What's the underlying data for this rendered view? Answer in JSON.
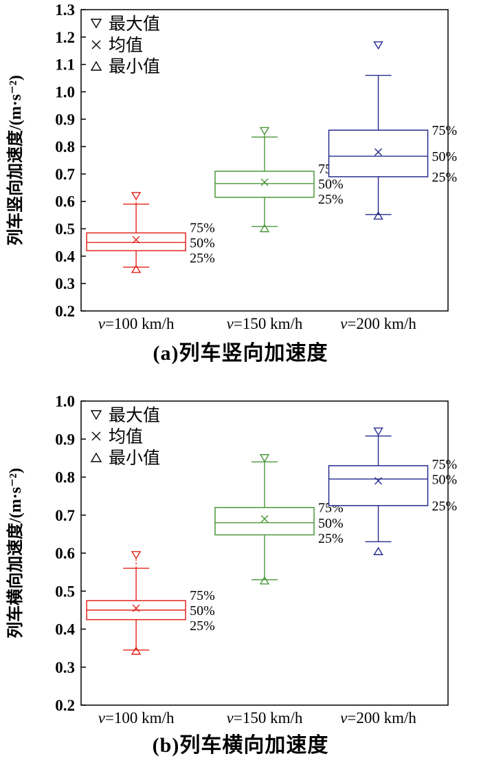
{
  "chart_data": [
    {
      "type": "box",
      "title": "(a)列车竖向加速度",
      "ylabel": "列车竖向加速度/(m·s⁻²)",
      "ylim": [
        0.2,
        1.3
      ],
      "ytick_step": 0.1,
      "grid": false,
      "legend_position": "top-left",
      "legend": [
        {
          "marker": "triangle-down-open",
          "label": "最大值"
        },
        {
          "marker": "cross",
          "label": "均值"
        },
        {
          "marker": "triangle-up-open",
          "label": "最小值"
        }
      ],
      "quartile_labels": [
        "75%",
        "50%",
        "25%"
      ],
      "categories": [
        "v=100 km/h",
        "v=150 km/h",
        "v=200 km/h"
      ],
      "series": [
        {
          "category": "v=100 km/h",
          "color": "#e2231a",
          "max": 0.62,
          "whisker_high": 0.59,
          "q3": 0.485,
          "mean": 0.46,
          "median": 0.45,
          "q1": 0.42,
          "whisker_low": 0.36,
          "min": 0.353
        },
        {
          "category": "v=150 km/h",
          "color": "#4a9738",
          "max": 0.857,
          "whisker_high": 0.835,
          "q3": 0.71,
          "mean": 0.67,
          "median": 0.665,
          "q1": 0.615,
          "whisker_low": 0.508,
          "min": 0.502
        },
        {
          "category": "v=200 km/h",
          "color": "#252a8e",
          "max": 1.17,
          "whisker_high": 1.06,
          "q3": 0.86,
          "mean": 0.78,
          "median": 0.765,
          "q1": 0.69,
          "whisker_low": 0.552,
          "min": 0.548
        }
      ]
    },
    {
      "type": "box",
      "title": "(b)列车横向加速度",
      "ylabel": "列车横向加速度/(m·s⁻²)",
      "ylim": [
        0.2,
        1.0
      ],
      "ytick_step": 0.1,
      "grid": false,
      "legend_position": "top-left",
      "legend": [
        {
          "marker": "triangle-down-open",
          "label": "最大值"
        },
        {
          "marker": "cross",
          "label": "均值"
        },
        {
          "marker": "triangle-up-open",
          "label": "最小值"
        }
      ],
      "quartile_labels": [
        "75%",
        "50%",
        "25%"
      ],
      "categories": [
        "v=100 km/h",
        "v=150 km/h",
        "v=200 km/h"
      ],
      "series": [
        {
          "category": "v=100 km/h",
          "color": "#e2231a",
          "max": 0.595,
          "whisker_high": 0.56,
          "q3": 0.475,
          "mean": 0.455,
          "median": 0.45,
          "q1": 0.425,
          "whisker_low": 0.345,
          "min": 0.343
        },
        {
          "category": "v=150 km/h",
          "color": "#4a9738",
          "max": 0.85,
          "whisker_high": 0.84,
          "q3": 0.72,
          "mean": 0.69,
          "median": 0.68,
          "q1": 0.648,
          "whisker_low": 0.53,
          "min": 0.528
        },
        {
          "category": "v=200 km/h",
          "color": "#252a8e",
          "max": 0.92,
          "whisker_high": 0.908,
          "q3": 0.83,
          "mean": 0.79,
          "median": 0.795,
          "q1": 0.725,
          "whisker_low": 0.63,
          "min": 0.605
        }
      ]
    }
  ]
}
